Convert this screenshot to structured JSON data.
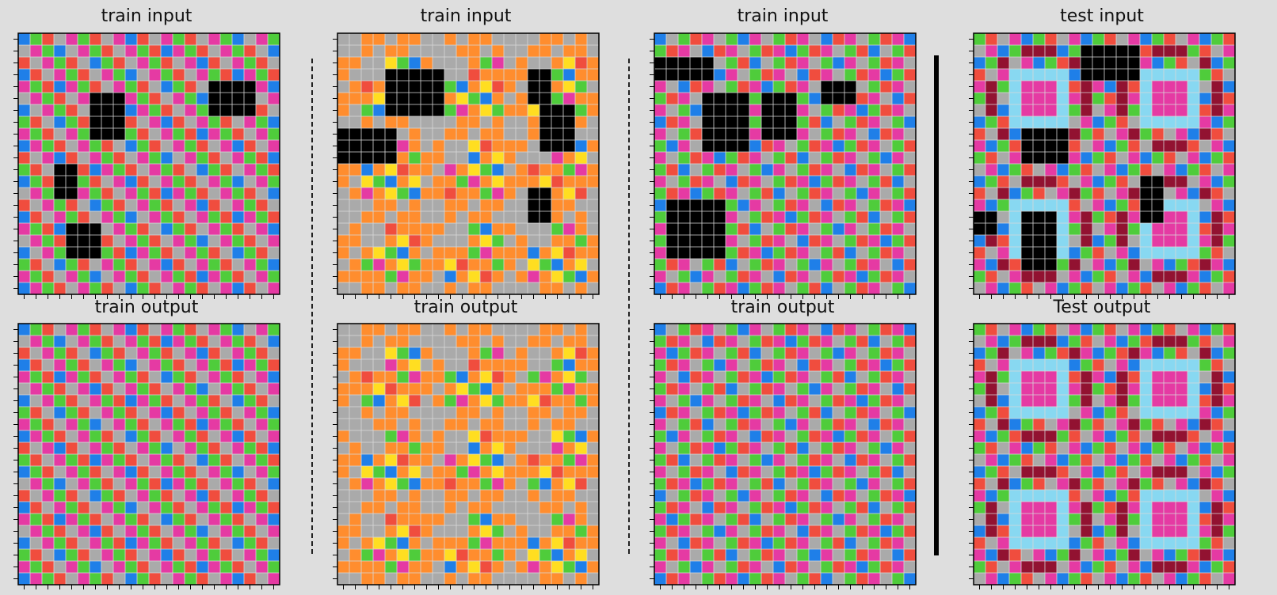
{
  "panels": [
    {
      "id": "train-1-input",
      "title": "train input",
      "palette": "magenta",
      "masks": [
        [
          6,
          5,
          3,
          4
        ],
        [
          16,
          4,
          4,
          3
        ],
        [
          3,
          11,
          2,
          3
        ],
        [
          4,
          16,
          3,
          3
        ]
      ]
    },
    {
      "id": "train-1-output",
      "title": "train output",
      "palette": "magenta",
      "masks": []
    },
    {
      "id": "train-2-input",
      "title": "train input",
      "palette": "orange",
      "masks": [
        [
          4,
          3,
          5,
          4
        ],
        [
          16,
          3,
          2,
          3
        ],
        [
          17,
          6,
          3,
          4
        ],
        [
          0,
          8,
          5,
          3
        ],
        [
          16,
          13,
          2,
          3
        ]
      ]
    },
    {
      "id": "train-2-output",
      "title": "train output",
      "palette": "orange",
      "masks": []
    },
    {
      "id": "train-3-input",
      "title": "train input",
      "palette": "blue",
      "masks": [
        [
          0,
          2,
          5,
          2
        ],
        [
          4,
          5,
          4,
          5
        ],
        [
          9,
          5,
          3,
          4
        ],
        [
          14,
          4,
          3,
          2
        ],
        [
          1,
          14,
          5,
          5
        ]
      ]
    },
    {
      "id": "train-3-output",
      "title": "train output",
      "palette": "blue",
      "masks": []
    },
    {
      "id": "test-input",
      "title": "test input",
      "palette": "test",
      "masks": [
        [
          9,
          1,
          5,
          3
        ],
        [
          4,
          8,
          4,
          3
        ],
        [
          14,
          12,
          2,
          4
        ],
        [
          0,
          15,
          2,
          2
        ],
        [
          4,
          15,
          3,
          5
        ]
      ]
    },
    {
      "id": "test-output",
      "title": "Test output",
      "palette": "test",
      "masks": []
    }
  ],
  "colors": {
    "magenta": "#e53aa3",
    "green": "#4fcc3b",
    "red": "#f04d3e",
    "gray": "#aaaaaa",
    "yellow": "#ffde21",
    "blue": "#1f7fe8",
    "orange": "#ff8d2e",
    "lightblue": "#88d8f1",
    "maroon": "#921231",
    "black": "#000000",
    "background": "#dedede"
  }
}
